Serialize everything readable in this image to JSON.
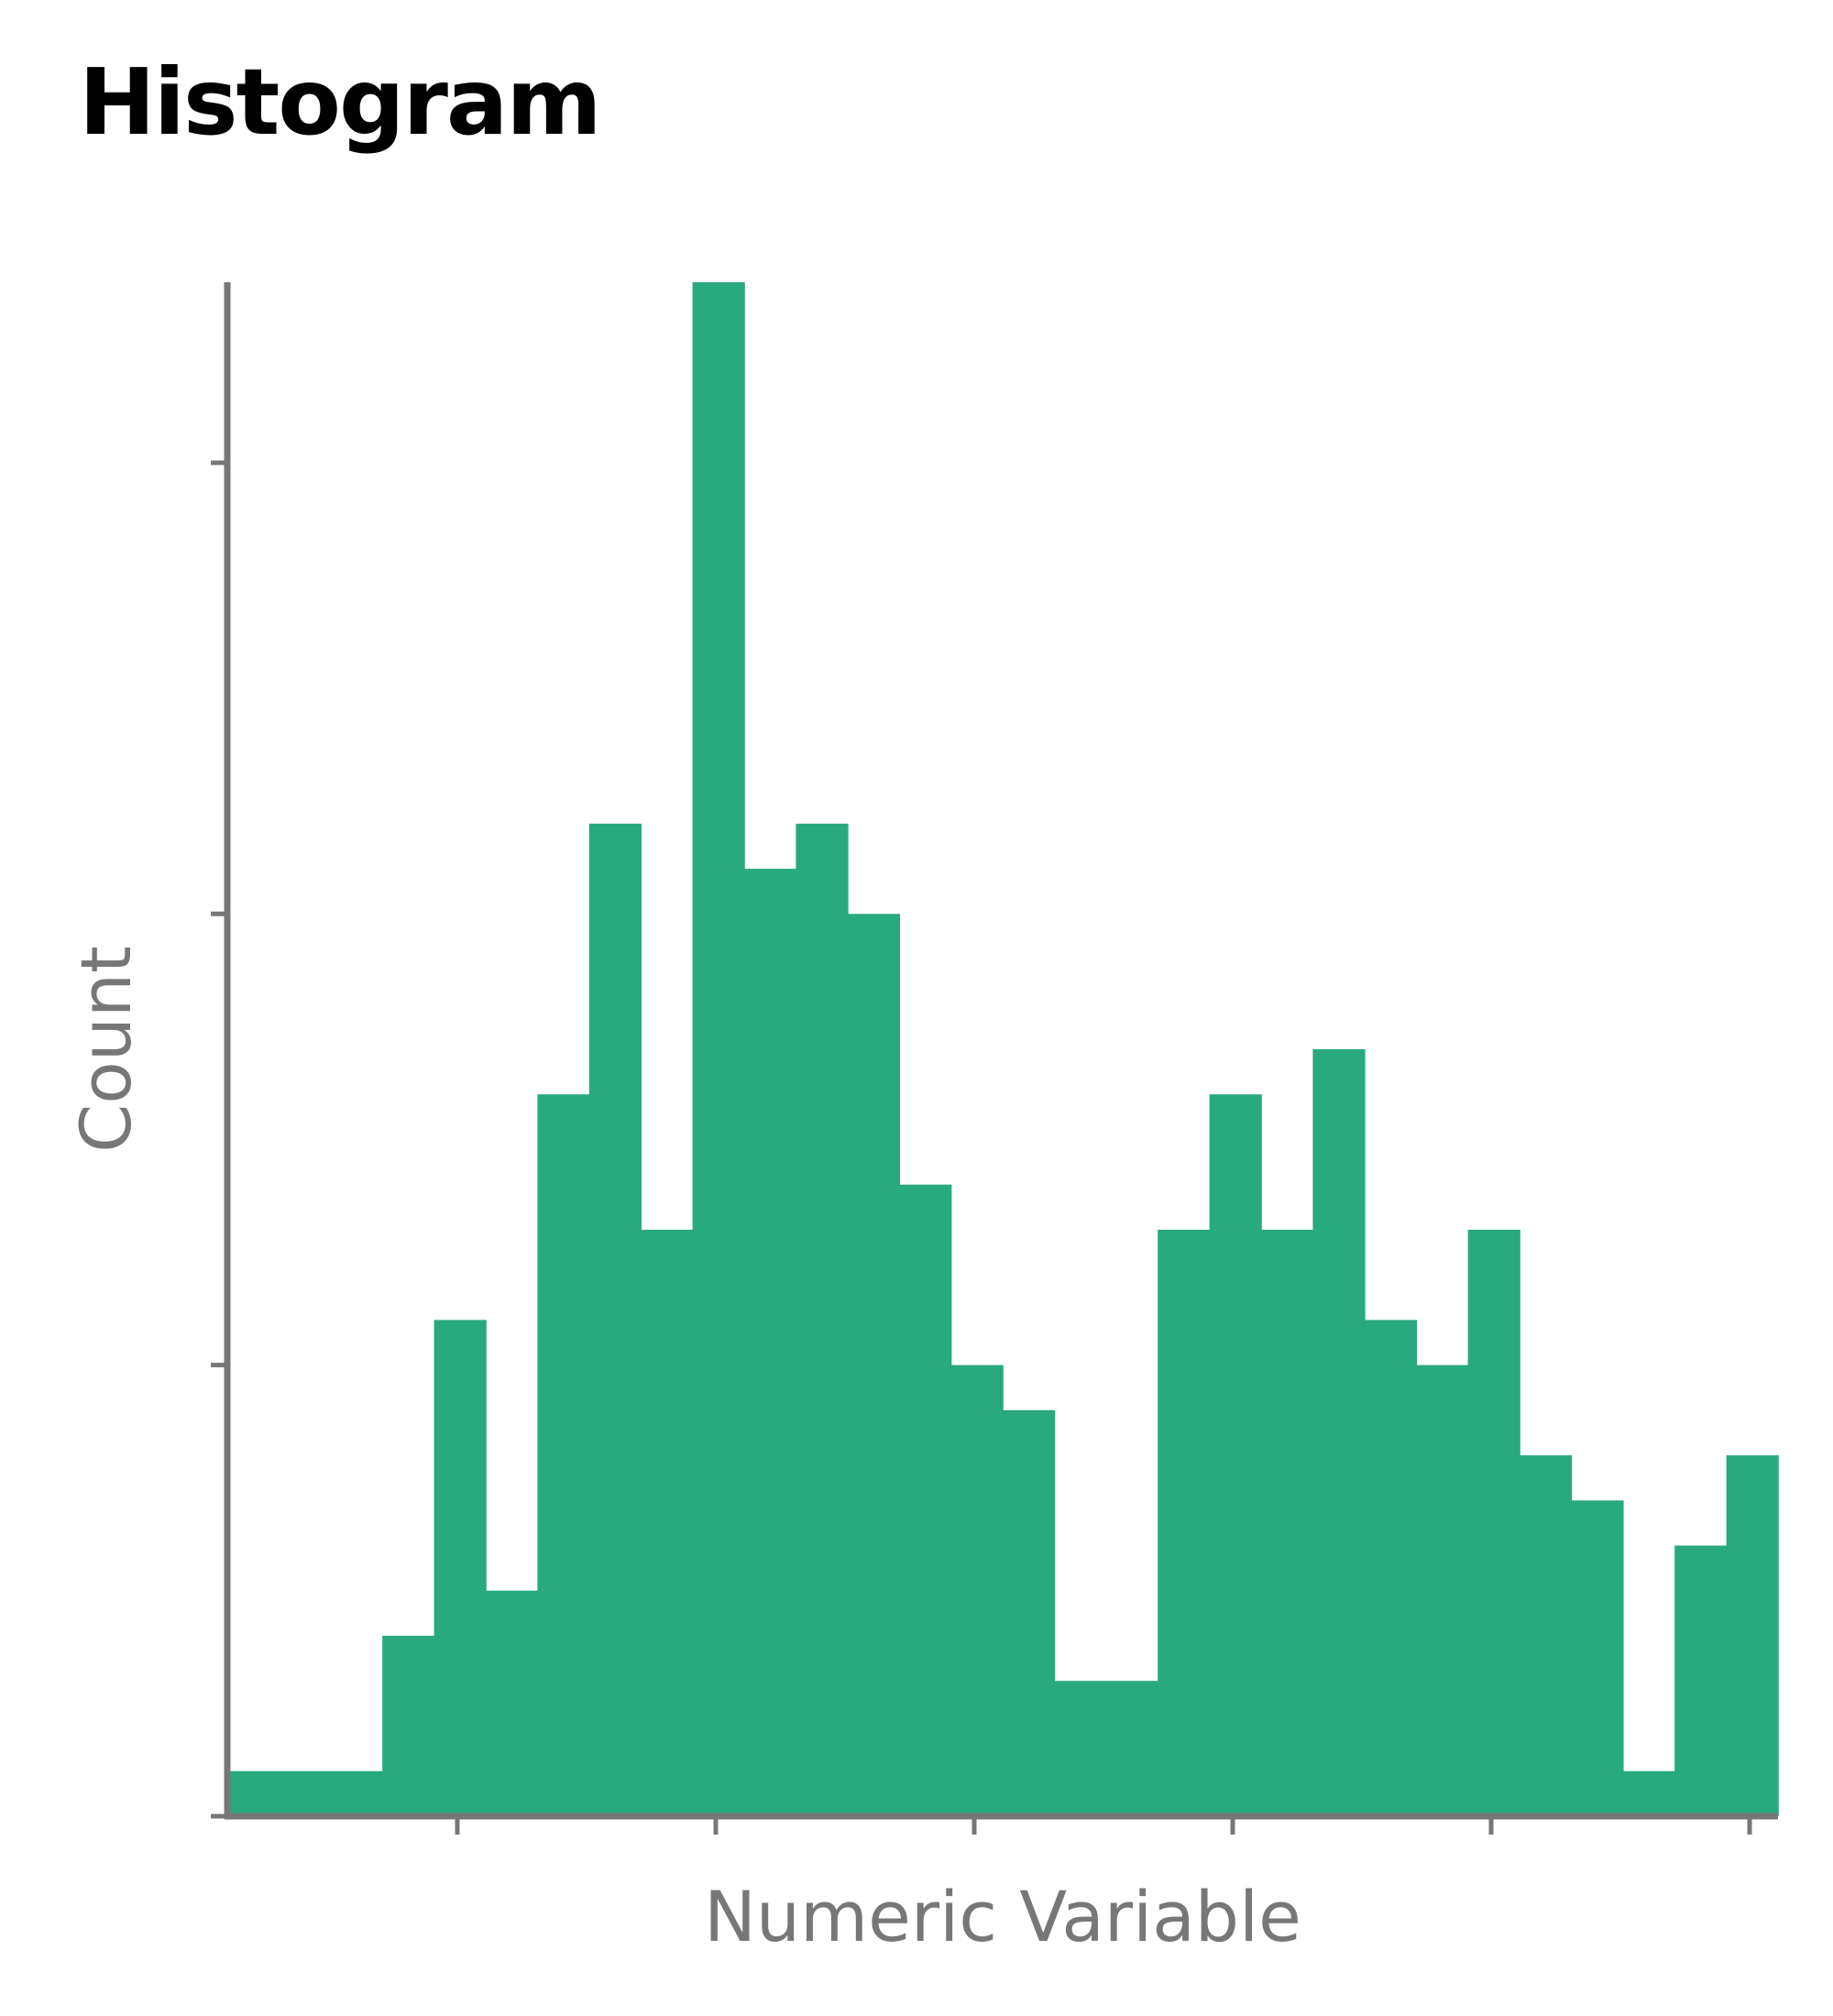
{
  "chart_data": {
    "type": "bar",
    "title": "Histogram",
    "xlabel": "Numeric Variable",
    "ylabel": "Count",
    "x_tick_labels": [],
    "y_tick_labels": [],
    "bin_count": 30,
    "values": [
      1,
      1,
      1,
      4,
      11,
      5,
      16,
      22,
      13,
      34,
      21,
      22,
      20,
      14,
      10,
      9,
      3,
      3,
      13,
      16,
      13,
      17,
      11,
      10,
      13,
      8,
      7,
      1,
      6,
      8
    ],
    "ylim": [
      0,
      34
    ],
    "y_ticks": [
      0,
      10,
      20,
      30
    ],
    "x_tick_count": 6,
    "grid": false,
    "legend": "none",
    "colors": {
      "bar": "#29a97e",
      "axis": "#777777",
      "title": "#000000"
    }
  }
}
